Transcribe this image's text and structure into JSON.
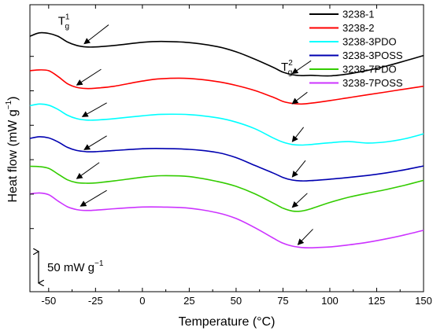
{
  "chart_data": {
    "type": "line",
    "xlabel": "Temperature (°C)",
    "ylabel": "Heat flow (mW g",
    "ylabel_sup": "−1",
    "ylabel_end": ")",
    "xlim": [
      -60,
      150
    ],
    "xticks": [
      -50,
      -25,
      0,
      25,
      50,
      75,
      100,
      125,
      150
    ],
    "ylim": [
      0,
      100
    ],
    "ytick_positions": [
      82,
      70,
      58,
      46,
      34,
      22
    ],
    "legend_position": "top-right",
    "scale_bar": {
      "label": "50 mW g",
      "sup": "−1",
      "y_from": 3,
      "y_to": 14
    },
    "tg_labels": {
      "tg1": {
        "base": "T",
        "sub": "g",
        "sup": "1",
        "x": -45,
        "y": 93
      },
      "tg2": {
        "base": "T",
        "sub": "g",
        "sup": "2",
        "x": 74,
        "y": 77
      }
    },
    "series": [
      {
        "name": "3238-1",
        "color": "#000000",
        "x": [
          -60,
          -55,
          -50,
          -45,
          -40,
          -35,
          -30,
          -25,
          -15,
          0,
          10,
          25,
          40,
          50,
          60,
          70,
          75,
          80,
          85,
          90,
          100,
          110,
          120,
          130,
          140,
          150
        ],
        "y": [
          89,
          90.2,
          90,
          89,
          87,
          85.8,
          85.3,
          85.3,
          85.8,
          86.9,
          87.2,
          86.8,
          85.4,
          83.6,
          81,
          78.1,
          76.5,
          75.6,
          75.3,
          75.4,
          75.2,
          75.9,
          77.1,
          78.6,
          80.4,
          82.3
        ]
      },
      {
        "name": "3238-2",
        "color": "#ff0000",
        "x": [
          -60,
          -55,
          -50,
          -45,
          -40,
          -35,
          -30,
          -25,
          -15,
          0,
          10,
          25,
          40,
          50,
          60,
          70,
          75,
          80,
          85,
          90,
          100,
          110,
          120,
          130,
          140,
          150
        ],
        "y": [
          77,
          77.3,
          77,
          75,
          72.5,
          71.2,
          70.8,
          70.9,
          71.6,
          73.4,
          74.2,
          74.3,
          73.2,
          71.9,
          70.1,
          67.7,
          66.3,
          65.6,
          65.4,
          65.7,
          66.6,
          67.6,
          68.6,
          69.6,
          70.6,
          71.6
        ]
      },
      {
        "name": "3238-3PDO",
        "color": "#00ffff",
        "x": [
          -60,
          -55,
          -50,
          -45,
          -40,
          -35,
          -30,
          -25,
          -15,
          0,
          10,
          25,
          40,
          50,
          60,
          70,
          75,
          80,
          85,
          90,
          100,
          110,
          120,
          130,
          140,
          150
        ],
        "y": [
          64.8,
          65.4,
          65,
          63.5,
          61.5,
          60.3,
          59.8,
          59.8,
          60.3,
          61.3,
          61.8,
          61.7,
          60.6,
          59.1,
          56.8,
          53.5,
          52.1,
          51.3,
          51.1,
          51.3,
          51.9,
          52.3,
          51.8,
          52.2,
          53.3,
          55
        ]
      },
      {
        "name": "3238-3POSS",
        "color": "#0000b0",
        "x": [
          -60,
          -55,
          -50,
          -45,
          -40,
          -35,
          -30,
          -25,
          -15,
          0,
          10,
          25,
          40,
          50,
          60,
          70,
          75,
          80,
          85,
          90,
          100,
          110,
          120,
          130,
          140,
          150
        ],
        "y": [
          53.4,
          54,
          53.6,
          52.2,
          50.3,
          49.2,
          48.8,
          48.8,
          49.2,
          49.8,
          49.9,
          49.6,
          48.5,
          46.7,
          44,
          41.3,
          39.8,
          38.9,
          38.6,
          38.7,
          39.2,
          39.8,
          40.5,
          41.4,
          42.5,
          43.8
        ]
      },
      {
        "name": "3238-7PDO",
        "color": "#33cc00",
        "x": [
          -60,
          -55,
          -50,
          -45,
          -40,
          -35,
          -30,
          -25,
          -15,
          0,
          10,
          25,
          40,
          50,
          60,
          70,
          75,
          80,
          85,
          90,
          100,
          110,
          120,
          130,
          140,
          150
        ],
        "y": [
          43.7,
          43.6,
          43,
          41,
          39,
          38,
          37.8,
          37.9,
          38.6,
          39.9,
          40.4,
          40.1,
          38.4,
          36.7,
          34.1,
          30.8,
          29.1,
          28.1,
          28.1,
          28.9,
          31.1,
          32.9,
          34.3,
          35.6,
          37.1,
          38.8
        ]
      },
      {
        "name": "3238-7POSS",
        "color": "#cc33ff",
        "x": [
          -60,
          -55,
          -50,
          -45,
          -40,
          -35,
          -30,
          -25,
          -15,
          0,
          10,
          25,
          40,
          50,
          60,
          70,
          75,
          80,
          85,
          90,
          100,
          110,
          120,
          130,
          140,
          150
        ],
        "y": [
          34.1,
          34.4,
          33.8,
          31.6,
          29.6,
          28.6,
          28.3,
          28.4,
          28.9,
          29.5,
          29.5,
          29.1,
          27.5,
          25.5,
          22.3,
          18.6,
          16.9,
          15.9,
          15.4,
          15.3,
          15.6,
          16.3,
          17.2,
          18.4,
          19.8,
          21.4
        ]
      }
    ],
    "arrows": [
      {
        "series": "3238-1",
        "from": [
          -18,
          93
        ],
        "to": [
          -31,
          86.4
        ]
      },
      {
        "series": "3238-1",
        "from": [
          90,
          80.5
        ],
        "to": [
          80,
          76
        ]
      },
      {
        "series": "3238-2",
        "from": [
          -22,
          77.5
        ],
        "to": [
          -35,
          72
        ]
      },
      {
        "series": "3238-2",
        "from": [
          88,
          69.5
        ],
        "to": [
          80,
          65.5
        ]
      },
      {
        "series": "3238-3PDO",
        "from": [
          -19,
          65.8
        ],
        "to": [
          -32,
          61
        ]
      },
      {
        "series": "3238-3POSS",
        "from": [
          -19,
          54.3
        ],
        "to": [
          -31,
          49.5
        ]
      },
      {
        "series": "3238-3POSS",
        "from": [
          87,
          45.7
        ],
        "to": [
          80,
          40
        ]
      },
      {
        "series": "3238-7PDO",
        "from": [
          -23,
          45
        ],
        "to": [
          -35,
          39.4
        ]
      },
      {
        "series": "3238-7PDO",
        "from": [
          88,
          34.3
        ],
        "to": [
          80,
          29.4
        ]
      },
      {
        "series": "3238-7POSS",
        "from": [
          -19,
          35.3
        ],
        "to": [
          -33,
          29.8
        ]
      },
      {
        "series": "3238-7POSS",
        "from": [
          91,
          21.8
        ],
        "to": [
          83,
          16.4
        ]
      },
      {
        "series": "3238-3PDO",
        "from": [
          86,
          57.3
        ],
        "to": [
          80,
          52.3
        ]
      }
    ]
  }
}
